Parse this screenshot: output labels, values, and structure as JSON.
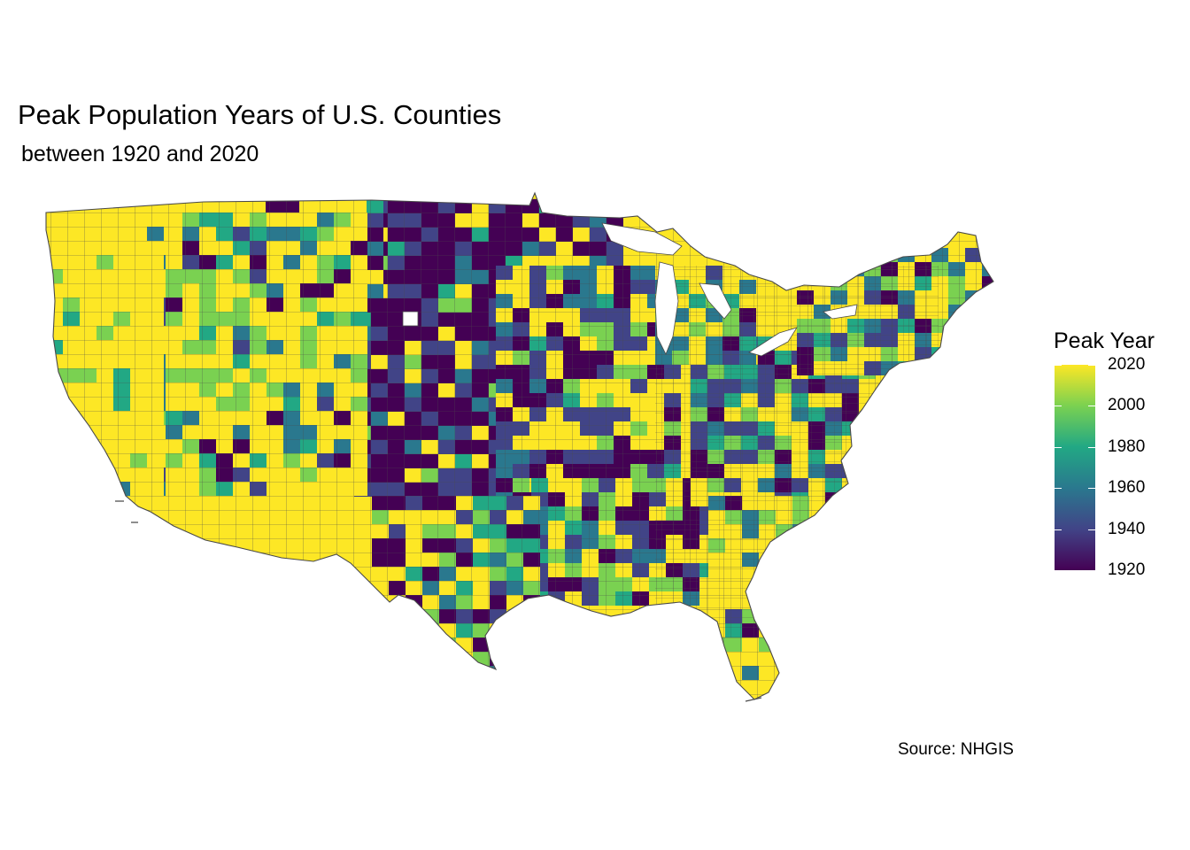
{
  "title": "Peak Population Years of U.S. Counties",
  "subtitle": "between 1920 and 2020",
  "caption": "Source: NHGIS",
  "legend": {
    "title": "Peak Year",
    "ticks": [
      {
        "label": "2020",
        "value": 2020
      },
      {
        "label": "2000",
        "value": 2000
      },
      {
        "label": "1980",
        "value": 1980
      },
      {
        "label": "1960",
        "value": 1960
      },
      {
        "label": "1940",
        "value": 1940
      },
      {
        "label": "1920",
        "value": 1920
      }
    ],
    "range": [
      1920,
      2020
    ]
  },
  "colors": {
    "scale": [
      "#440154",
      "#414487",
      "#2a788e",
      "#22a884",
      "#7ad151",
      "#fde725"
    ],
    "border": "#4a4a4a",
    "missing": "#ffffff"
  },
  "map": {
    "region": "contiguous United States",
    "unit": "county",
    "color_scale": "viridis",
    "variable": "peak population year"
  }
}
